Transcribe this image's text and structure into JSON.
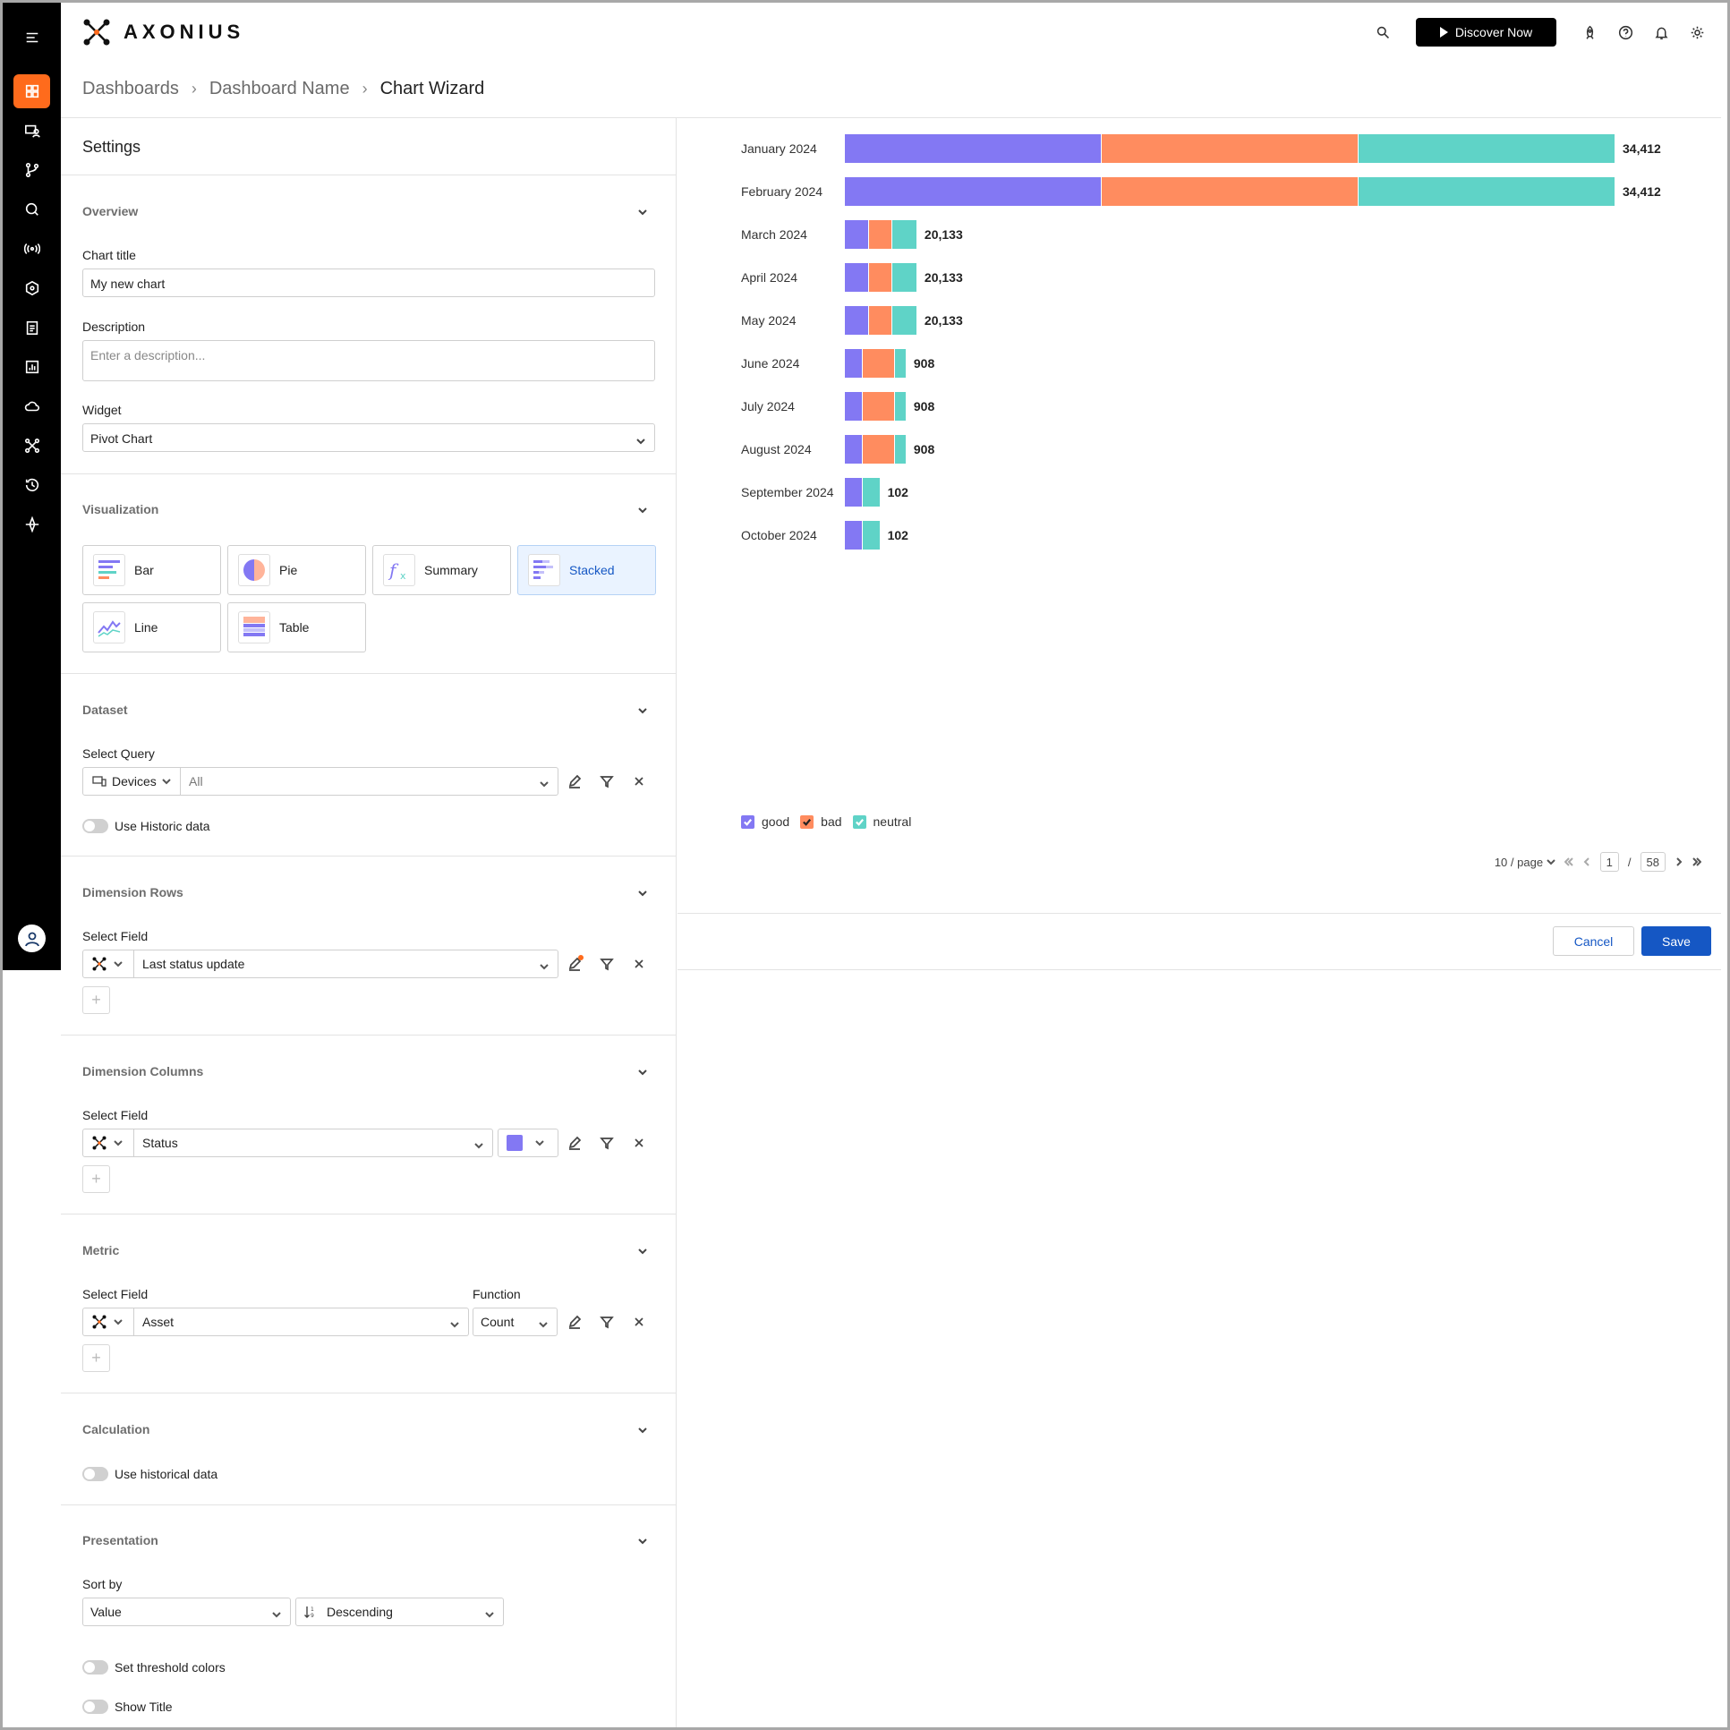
{
  "app": {
    "logo": "AXONIUS"
  },
  "header": {
    "discover_label": "Discover Now"
  },
  "breadcrumb": [
    "Dashboards",
    "Dashboard Name",
    "Chart Wizard"
  ],
  "settings": {
    "title": "Settings",
    "overview": {
      "heading": "Overview",
      "chart_title_label": "Chart title",
      "chart_title_value": "My new chart",
      "description_label": "Description",
      "description_placeholder": "Enter a description...",
      "widget_label": "Widget",
      "widget_value": "Pivot Chart"
    },
    "visualization": {
      "heading": "Visualization",
      "options": [
        "Bar",
        "Pie",
        "Summary",
        "Stacked",
        "Line",
        "Table"
      ],
      "selected": "Stacked"
    },
    "dataset": {
      "heading": "Dataset",
      "select_query_label": "Select Query",
      "entity": "Devices",
      "query": "All",
      "historic_label": "Use Historic data"
    },
    "dimension_rows": {
      "heading": "Dimension Rows",
      "select_field_label": "Select Field",
      "field": "Last status update"
    },
    "dimension_columns": {
      "heading": "Dimension Columns",
      "select_field_label": "Select Field",
      "field": "Status"
    },
    "metric": {
      "heading": "Metric",
      "select_field_label": "Select Field",
      "function_label": "Function",
      "field": "Asset",
      "function": "Count"
    },
    "calculation": {
      "heading": "Calculation",
      "historical_label": "Use historical data"
    },
    "presentation": {
      "heading": "Presentation",
      "sort_by_label": "Sort by",
      "sort_field": "Value",
      "sort_order": "Descending",
      "threshold_label": "Set threshold colors",
      "show_title_label": "Show Title"
    }
  },
  "colors": {
    "good": "#8378f3",
    "bad": "#ff8c5f",
    "neutral": "#5fd3c7",
    "accent": "#ff6b1c",
    "primary": "#1557c4"
  },
  "chart_data": {
    "type": "bar",
    "orientation": "horizontal",
    "stacked": true,
    "categories": [
      "January 2024",
      "February 2024",
      "March 2024",
      "April 2024",
      "May 2024",
      "June 2024",
      "July 2024",
      "August 2024",
      "September 2024",
      "October 2024"
    ],
    "totals": [
      "34,412",
      "34,412",
      "20,133",
      "20,133",
      "20,133",
      "908",
      "908",
      "908",
      "102",
      "102"
    ],
    "total_values": [
      34412,
      34412,
      20133,
      20133,
      20133,
      908,
      908,
      908,
      102,
      102
    ],
    "series": [
      {
        "name": "good",
        "shares": [
          0.333,
          0.333,
          0.33,
          0.33,
          0.33,
          0.29,
          0.29,
          0.29,
          0.5,
          0.5
        ]
      },
      {
        "name": "bad",
        "shares": [
          0.334,
          0.334,
          0.33,
          0.33,
          0.33,
          0.52,
          0.52,
          0.52,
          0.0,
          0.0
        ]
      },
      {
        "name": "neutral",
        "shares": [
          0.333,
          0.333,
          0.34,
          0.34,
          0.34,
          0.19,
          0.19,
          0.19,
          0.5,
          0.5
        ]
      }
    ],
    "bar_fractions": [
      1.0,
      1.0,
      0.094,
      0.094,
      0.094,
      0.08,
      0.08,
      0.08,
      0.046,
      0.046
    ],
    "legend": [
      "good",
      "bad",
      "neutral"
    ],
    "legend_placement": "bottom-left"
  },
  "pagination": {
    "page_size": "10 / page",
    "current": "1",
    "total": "58",
    "sep": "/"
  },
  "actions": {
    "cancel": "Cancel",
    "save": "Save"
  }
}
